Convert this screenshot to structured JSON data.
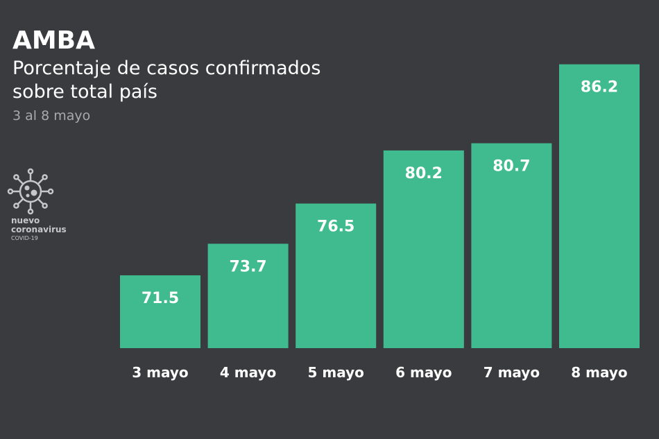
{
  "header": {
    "title": "AMBA",
    "subtitle": "Porcentaje de casos confirmados sobre total país",
    "range": "3 al 8 mayo"
  },
  "brand": {
    "icon": "coronavirus-icon",
    "line1": "nuevo",
    "line2": "coronavirus",
    "line3": "COVID-19"
  },
  "colors": {
    "background": "#3a3b3e",
    "bar": "#3fbb8f",
    "label": "#ffffff",
    "tick": "#ffffff"
  },
  "chart_data": {
    "type": "bar",
    "title": "AMBA",
    "subtitle": "Porcentaje de casos confirmados sobre total país",
    "categories": [
      "3 mayo",
      "4 mayo",
      "5 mayo",
      "6 mayo",
      "7 mayo",
      "8 mayo"
    ],
    "values": [
      71.5,
      73.7,
      76.5,
      80.2,
      80.7,
      86.2
    ],
    "value_labels": [
      "71.5",
      "73.7",
      "76.5",
      "80.2",
      "80.7",
      "86.2"
    ],
    "xlabel": "",
    "ylabel": "",
    "grid": false,
    "legend": "none"
  }
}
